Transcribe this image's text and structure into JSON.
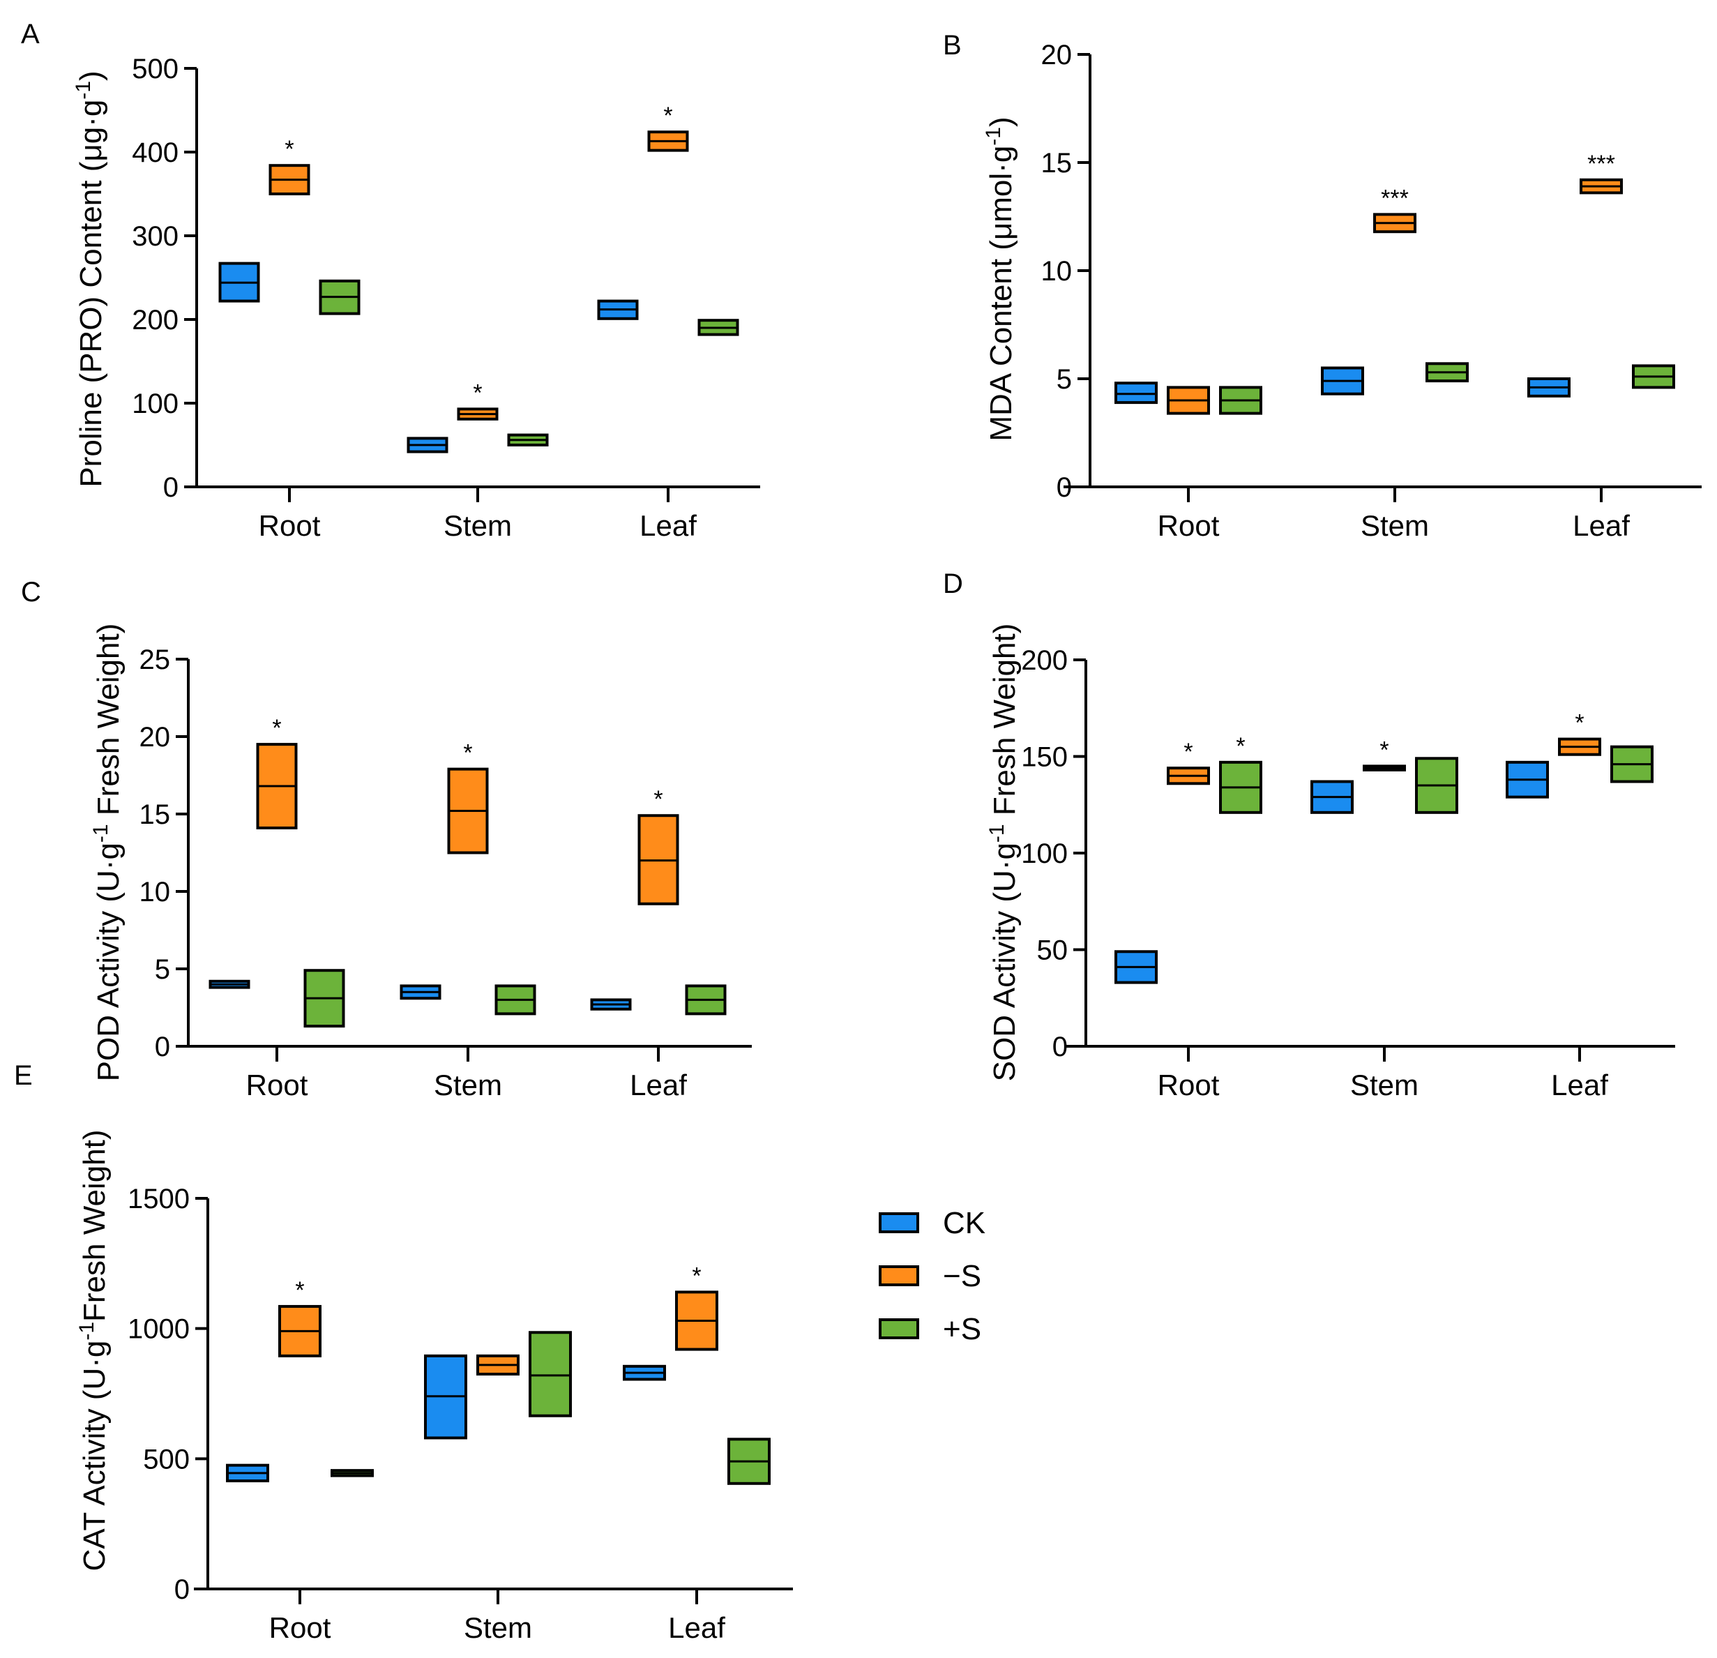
{
  "legend": [
    {
      "label": "CK",
      "color": "#1a8cf0"
    },
    {
      "label": "−S",
      "color": "#ff8c1a"
    },
    {
      "label": "+S",
      "color": "#6cb33a"
    }
  ],
  "colors": {
    "CK": "#1a8cf0",
    "minusS": "#ff8c1a",
    "plusS": "#6cb33a",
    "stroke": "#000000"
  },
  "chart_data": [
    {
      "panel": "A",
      "type": "box",
      "title": "",
      "ylabel_main": "Proline (PRO) Content (μg·g",
      "ylabel_sup": "-1",
      "ylabel_tail": ")",
      "xlabel": "",
      "categories": [
        "Root",
        "Stem",
        "Leaf"
      ],
      "ylim": [
        0,
        500
      ],
      "yticks": [
        0,
        100,
        200,
        300,
        400,
        500
      ],
      "series": [
        {
          "name": "CK",
          "boxes": [
            {
              "low": 222,
              "median": 244,
              "high": 267
            },
            {
              "low": 42,
              "median": 50,
              "high": 58
            },
            {
              "low": 201,
              "median": 212,
              "high": 222
            }
          ]
        },
        {
          "name": "−S",
          "boxes": [
            {
              "low": 350,
              "median": 367,
              "high": 384
            },
            {
              "low": 81,
              "median": 87,
              "high": 93
            },
            {
              "low": 402,
              "median": 413,
              "high": 424
            }
          ]
        },
        {
          "name": "+S",
          "boxes": [
            {
              "low": 207,
              "median": 227,
              "high": 246
            },
            {
              "low": 50,
              "median": 56,
              "high": 62
            },
            {
              "low": 182,
              "median": 190,
              "high": 199
            }
          ]
        }
      ],
      "significance": [
        {
          "category": "Root",
          "series": "−S",
          "label": "*"
        },
        {
          "category": "Stem",
          "series": "−S",
          "label": "*"
        },
        {
          "category": "Leaf",
          "series": "−S",
          "label": "*"
        }
      ]
    },
    {
      "panel": "B",
      "type": "box",
      "title": "",
      "ylabel_main": "MDA Content (μmol·g",
      "ylabel_sup": "-1",
      "ylabel_tail": ")",
      "xlabel": "",
      "categories": [
        "Root",
        "Stem",
        "Leaf"
      ],
      "ylim": [
        0,
        20
      ],
      "yticks": [
        0,
        5,
        10,
        15,
        20
      ],
      "series": [
        {
          "name": "CK",
          "boxes": [
            {
              "low": 3.9,
              "median": 4.3,
              "high": 4.8
            },
            {
              "low": 4.3,
              "median": 4.9,
              "high": 5.5
            },
            {
              "low": 4.2,
              "median": 4.6,
              "high": 5.0
            }
          ]
        },
        {
          "name": "−S",
          "boxes": [
            {
              "low": 3.4,
              "median": 4.0,
              "high": 4.6
            },
            {
              "low": 11.8,
              "median": 12.2,
              "high": 12.6
            },
            {
              "low": 13.6,
              "median": 13.9,
              "high": 14.2
            }
          ]
        },
        {
          "name": "+S",
          "boxes": [
            {
              "low": 3.4,
              "median": 4.0,
              "high": 4.6
            },
            {
              "low": 4.9,
              "median": 5.3,
              "high": 5.7
            },
            {
              "low": 4.6,
              "median": 5.1,
              "high": 5.6
            }
          ]
        }
      ],
      "significance": [
        {
          "category": "Stem",
          "series": "−S",
          "label": "***"
        },
        {
          "category": "Leaf",
          "series": "−S",
          "label": "***"
        }
      ]
    },
    {
      "panel": "C",
      "type": "box",
      "title": "",
      "ylabel_main": "POD Activity (U·g",
      "ylabel_sup": "-1",
      "ylabel_tail": " Fresh Weight)",
      "xlabel": "",
      "categories": [
        "Root",
        "Stem",
        "Leaf"
      ],
      "ylim": [
        0,
        25
      ],
      "yticks": [
        0,
        5,
        10,
        15,
        20,
        25
      ],
      "series": [
        {
          "name": "CK",
          "boxes": [
            {
              "low": 3.8,
              "median": 4.0,
              "high": 4.2
            },
            {
              "low": 3.1,
              "median": 3.5,
              "high": 3.9
            },
            {
              "low": 2.4,
              "median": 2.7,
              "high": 3.0
            }
          ]
        },
        {
          "name": "−S",
          "boxes": [
            {
              "low": 14.1,
              "median": 16.8,
              "high": 19.5
            },
            {
              "low": 12.5,
              "median": 15.2,
              "high": 17.9
            },
            {
              "low": 9.2,
              "median": 12.0,
              "high": 14.9
            }
          ]
        },
        {
          "name": "+S",
          "boxes": [
            {
              "low": 1.3,
              "median": 3.1,
              "high": 4.9
            },
            {
              "low": 2.1,
              "median": 3.0,
              "high": 3.9
            },
            {
              "low": 2.1,
              "median": 3.0,
              "high": 3.9
            }
          ]
        }
      ],
      "significance": [
        {
          "category": "Root",
          "series": "−S",
          "label": "*"
        },
        {
          "category": "Stem",
          "series": "−S",
          "label": "*"
        },
        {
          "category": "Leaf",
          "series": "−S",
          "label": "*"
        }
      ]
    },
    {
      "panel": "D",
      "type": "box",
      "title": "",
      "ylabel_main": "SOD Activity (U·g",
      "ylabel_sup": "-1",
      "ylabel_tail": " Fresh Weight)",
      "xlabel": "",
      "categories": [
        "Root",
        "Stem",
        "Leaf"
      ],
      "ylim": [
        0,
        200
      ],
      "yticks": [
        0,
        50,
        100,
        150,
        200
      ],
      "series": [
        {
          "name": "CK",
          "boxes": [
            {
              "low": 33,
              "median": 41,
              "high": 49
            },
            {
              "low": 121,
              "median": 129,
              "high": 137
            },
            {
              "low": 129,
              "median": 138,
              "high": 147
            }
          ]
        },
        {
          "name": "−S",
          "boxes": [
            {
              "low": 136,
              "median": 140,
              "high": 144
            },
            {
              "low": 143,
              "median": 144,
              "high": 145
            },
            {
              "low": 151,
              "median": 155,
              "high": 159
            }
          ]
        },
        {
          "name": "+S",
          "boxes": [
            {
              "low": 121,
              "median": 134,
              "high": 147
            },
            {
              "low": 121,
              "median": 135,
              "high": 149
            },
            {
              "low": 137,
              "median": 146,
              "high": 155
            }
          ]
        }
      ],
      "significance": [
        {
          "category": "Root",
          "series": "−S",
          "label": "*"
        },
        {
          "category": "Root",
          "series": "+S",
          "label": "*"
        },
        {
          "category": "Stem",
          "series": "−S",
          "label": "*"
        },
        {
          "category": "Leaf",
          "series": "−S",
          "label": "*"
        }
      ]
    },
    {
      "panel": "E",
      "type": "box",
      "title": "",
      "ylabel_main": "CAT Activity (U·g",
      "ylabel_sup": "-1",
      "ylabel_tail": "Fresh Weight)",
      "xlabel": "",
      "categories": [
        "Root",
        "Stem",
        "Leaf"
      ],
      "ylim": [
        0,
        1500
      ],
      "yticks": [
        0,
        500,
        1000,
        1500
      ],
      "series": [
        {
          "name": "CK",
          "boxes": [
            {
              "low": 415,
              "median": 445,
              "high": 475
            },
            {
              "low": 580,
              "median": 740,
              "high": 895
            },
            {
              "low": 805,
              "median": 830,
              "high": 855
            }
          ]
        },
        {
          "name": "−S",
          "boxes": [
            {
              "low": 895,
              "median": 990,
              "high": 1085
            },
            {
              "low": 825,
              "median": 860,
              "high": 895
            },
            {
              "low": 920,
              "median": 1030,
              "high": 1140
            }
          ]
        },
        {
          "name": "+S",
          "boxes": [
            {
              "low": 435,
              "median": 445,
              "high": 455
            },
            {
              "low": 665,
              "median": 820,
              "high": 985
            },
            {
              "low": 405,
              "median": 490,
              "high": 575
            }
          ]
        }
      ],
      "significance": [
        {
          "category": "Root",
          "series": "−S",
          "label": "*"
        },
        {
          "category": "Leaf",
          "series": "−S",
          "label": "*"
        }
      ]
    }
  ]
}
